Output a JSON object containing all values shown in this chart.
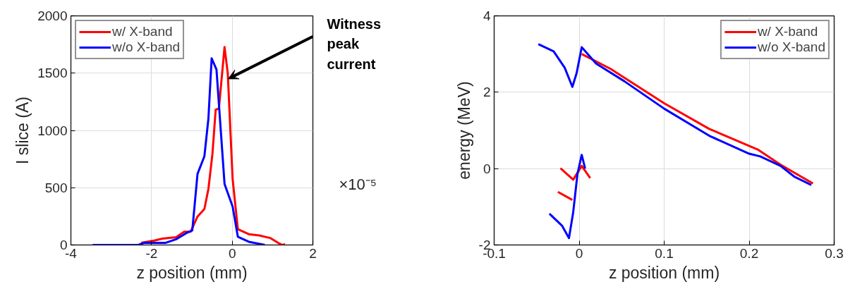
{
  "chart_data": [
    {
      "type": "line",
      "xlabel": "z position (mm)",
      "ylabel": "I slice (A)",
      "xlim": [
        -4,
        2
      ],
      "ylim": [
        0,
        2000
      ],
      "xticks": [
        -4,
        -2,
        0,
        2
      ],
      "yticks": [
        0,
        500,
        1000,
        1500,
        2000
      ],
      "grid": true,
      "legend": "top left",
      "line_style": "solid",
      "annotations": [
        {
          "text": "Witness peak current",
          "x": -0.1,
          "y": 1450
        },
        "×10⁻⁵"
      ],
      "series": [
        {
          "name": "w/ X-band",
          "color": "#ff0000",
          "x": [
            -2.26,
            -1.93,
            -1.73,
            -1.39,
            -1.19,
            -1.03,
            -0.86,
            -0.69,
            -0.59,
            -0.49,
            -0.41,
            -0.33,
            -0.19,
            -0.11,
            0.01,
            0.14,
            0.41,
            0.67,
            0.94,
            1.14,
            1.24,
            1.31
          ],
          "values": [
            18,
            39,
            55,
            68,
            116,
            116,
            248,
            314,
            489,
            796,
            1180,
            1191,
            1728,
            1498,
            577,
            138,
            94,
            83,
            61,
            18,
            0,
            7
          ]
        },
        {
          "name": "w/o X-band",
          "color": "#0000ff",
          "x": [
            -3.46,
            -2.33,
            -2.19,
            -1.66,
            -1.39,
            -1.13,
            -0.99,
            -0.86,
            -0.69,
            -0.59,
            -0.51,
            -0.39,
            -0.19,
            0.01,
            0.14,
            0.41,
            0.81
          ],
          "values": [
            0,
            0,
            18,
            18,
            50,
            105,
            127,
            621,
            774,
            1103,
            1629,
            1531,
            533,
            336,
            72,
            28,
            0
          ]
        }
      ]
    },
    {
      "type": "line",
      "xlabel": "z position (mm)",
      "ylabel": "energy (MeV)",
      "xlim": [
        -0.1,
        0.3
      ],
      "ylim": [
        -2,
        4
      ],
      "xticks": [
        -0.1,
        0,
        0.1,
        0.2,
        0.3
      ],
      "yticks": [
        -2,
        0,
        2,
        4
      ],
      "grid": true,
      "legend": "top right",
      "line_style": "solid",
      "series": [
        {
          "name": "w/ X-band",
          "color": "#ff0000",
          "x": [
            0.003,
            0.037,
            0.1,
            0.153,
            0.21,
            0.237,
            0.275,
            null,
            -0.022,
            -0.007,
            0.003,
            0.013,
            null,
            -0.025,
            -0.008,
            null
          ],
          "values": [
            3.0,
            2.61,
            1.71,
            1.04,
            0.5,
            0.1,
            -0.39,
            null,
            0.01,
            -0.29,
            0.07,
            -0.25,
            null,
            -0.61,
            -0.82,
            null
          ]
        },
        {
          "name": "w/o X-band",
          "color": "#0000ff",
          "x": [
            -0.048,
            -0.03,
            -0.017,
            -0.008,
            -0.003,
            0.003,
            0.02,
            0.053,
            0.1,
            0.153,
            0.2,
            0.213,
            0.237,
            0.253,
            0.273,
            null,
            -0.035,
            -0.02,
            -0.012,
            -0.007,
            -0.002,
            0.003,
            0.007
          ],
          "values": [
            3.26,
            3.07,
            2.64,
            2.14,
            2.5,
            3.18,
            2.75,
            2.29,
            1.57,
            0.86,
            0.39,
            0.32,
            0.07,
            -0.21,
            -0.43,
            null,
            -1.18,
            -1.5,
            -1.82,
            -1.14,
            -0.14,
            0.36,
            0.0
          ]
        }
      ]
    }
  ]
}
